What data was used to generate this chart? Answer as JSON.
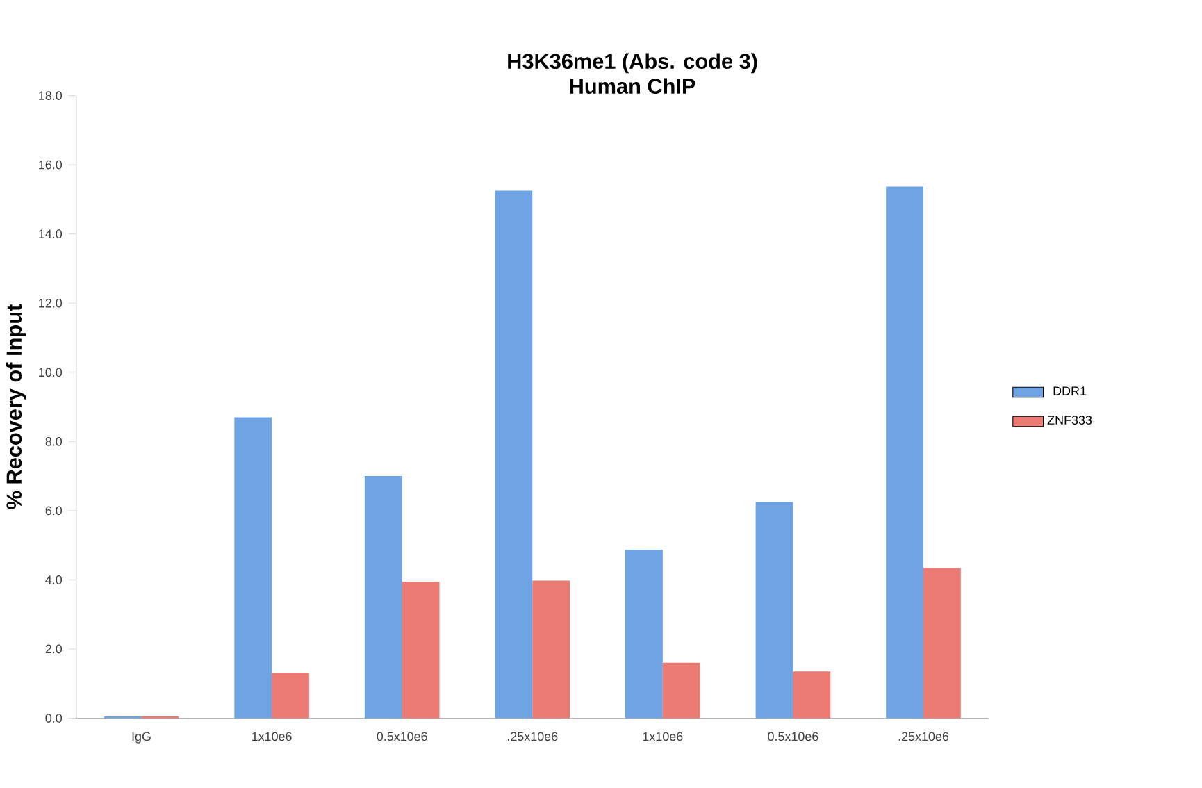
{
  "chart_data": {
    "type": "bar",
    "title": "H3K36me1 (Abs. code 3)",
    "subtitle": "Human ChIP",
    "ylabel": "% Recovery of Input",
    "categories": [
      "IgG",
      "1x10e6",
      "0.5x10e6",
      ".25x10e6",
      "1x10e6",
      "0.5x10e6",
      ".25x10e6"
    ],
    "series": [
      {
        "name": "DDR1",
        "color": "#6ea4e4",
        "values": [
          0.05,
          8.7,
          7.0,
          15.25,
          4.87,
          6.25,
          15.37
        ]
      },
      {
        "name": "ZNF333",
        "color": "#ea7a72",
        "values": [
          0.05,
          1.31,
          3.94,
          3.98,
          1.6,
          1.35,
          4.34
        ]
      }
    ],
    "ylim": [
      0,
      18
    ],
    "yticks": [
      {
        "value": 0,
        "label": "0.0"
      },
      {
        "value": 2,
        "label": "2.0"
      },
      {
        "value": 4,
        "label": "4.0"
      },
      {
        "value": 6,
        "label": "6.0"
      },
      {
        "value": 8,
        "label": "8.0"
      },
      {
        "value": 10,
        "label": "10.0"
      },
      {
        "value": 12,
        "label": "12.0"
      },
      {
        "value": 14,
        "label": "14.0"
      },
      {
        "value": 16,
        "label": "16.0"
      },
      {
        "value": 18,
        "label": "18.0"
      }
    ],
    "grid": false,
    "legend": "right"
  }
}
